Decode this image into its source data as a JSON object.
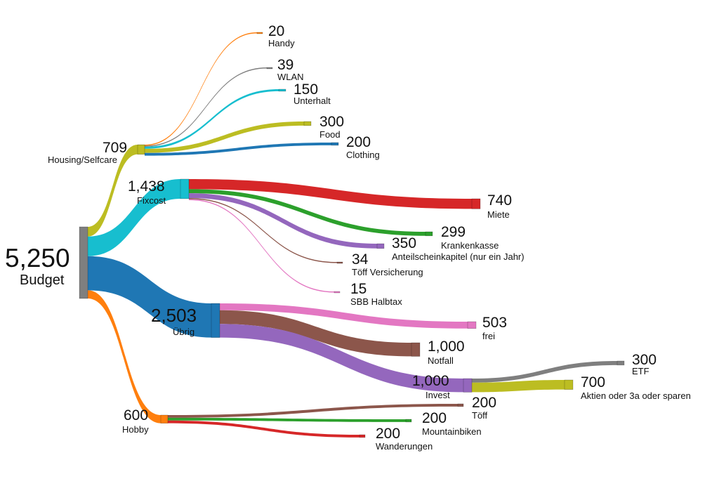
{
  "chart_data": {
    "type": "sankey",
    "units": "",
    "nodes": [
      {
        "id": "budget",
        "label": "Budget",
        "value": 5250,
        "value_text": "5,250",
        "color": "#7f7f7f"
      },
      {
        "id": "housing",
        "label": "Housing/Selfcare",
        "value": 709,
        "value_text": "709",
        "color": "#bcbd22"
      },
      {
        "id": "fixcost",
        "label": "Fixcost",
        "value": 1438,
        "value_text": "1,438",
        "color": "#17becf"
      },
      {
        "id": "uebrig",
        "label": "Übrig",
        "value": 2503,
        "value_text": "2,503",
        "color": "#1f77b4"
      },
      {
        "id": "hobby",
        "label": "Hobby",
        "value": 600,
        "value_text": "600",
        "color": "#ff7f0e"
      },
      {
        "id": "handy",
        "label": "Handy",
        "value": 20,
        "value_text": "20",
        "color": "#ff7f0e"
      },
      {
        "id": "wlan",
        "label": "WLAN",
        "value": 39,
        "value_text": "39",
        "color": "#7f7f7f"
      },
      {
        "id": "unterhalt",
        "label": "Unterhalt",
        "value": 150,
        "value_text": "150",
        "color": "#17becf"
      },
      {
        "id": "food",
        "label": "Food",
        "value": 300,
        "value_text": "300",
        "color": "#bcbd22"
      },
      {
        "id": "clothing",
        "label": "Clothing",
        "value": 200,
        "value_text": "200",
        "color": "#1f77b4"
      },
      {
        "id": "miete",
        "label": "Miete",
        "value": 740,
        "value_text": "740",
        "color": "#d62728"
      },
      {
        "id": "krankenkasse",
        "label": "Krankenkasse",
        "value": 299,
        "value_text": "299",
        "color": "#2ca02c"
      },
      {
        "id": "anteil",
        "label": "Anteilscheinkapitel (nur ein Jahr)",
        "value": 350,
        "value_text": "350",
        "color": "#9467bd"
      },
      {
        "id": "toeffvers",
        "label": "Töff Versicherung",
        "value": 34,
        "value_text": "34",
        "color": "#8c564b"
      },
      {
        "id": "sbb",
        "label": "SBB Halbtax",
        "value": 15,
        "value_text": "15",
        "color": "#e377c2"
      },
      {
        "id": "frei",
        "label": "frei",
        "value": 503,
        "value_text": "503",
        "color": "#e377c2"
      },
      {
        "id": "notfall",
        "label": "Notfall",
        "value": 1000,
        "value_text": "1,000",
        "color": "#8c564b"
      },
      {
        "id": "invest",
        "label": "Invest",
        "value": 1000,
        "value_text": "1,000",
        "color": "#9467bd"
      },
      {
        "id": "etf",
        "label": "ETF",
        "value": 300,
        "value_text": "300",
        "color": "#7f7f7f"
      },
      {
        "id": "aktien",
        "label": "Aktien oder 3a oder sparen",
        "value": 700,
        "value_text": "700",
        "color": "#bcbd22"
      },
      {
        "id": "toeff",
        "label": "Töff",
        "value": 200,
        "value_text": "200",
        "color": "#8c564b"
      },
      {
        "id": "mountain",
        "label": "Mountainbiken",
        "value": 200,
        "value_text": "200",
        "color": "#2ca02c"
      },
      {
        "id": "wander",
        "label": "Wanderungen",
        "value": 200,
        "value_text": "200",
        "color": "#d62728"
      }
    ],
    "links": [
      {
        "source": "budget",
        "target": "housing",
        "value": 709
      },
      {
        "source": "budget",
        "target": "fixcost",
        "value": 1438
      },
      {
        "source": "budget",
        "target": "uebrig",
        "value": 2503
      },
      {
        "source": "budget",
        "target": "hobby",
        "value": 600
      },
      {
        "source": "housing",
        "target": "handy",
        "value": 20
      },
      {
        "source": "housing",
        "target": "wlan",
        "value": 39
      },
      {
        "source": "housing",
        "target": "unterhalt",
        "value": 150
      },
      {
        "source": "housing",
        "target": "food",
        "value": 300
      },
      {
        "source": "housing",
        "target": "clothing",
        "value": 200
      },
      {
        "source": "fixcost",
        "target": "miete",
        "value": 740
      },
      {
        "source": "fixcost",
        "target": "krankenkasse",
        "value": 299
      },
      {
        "source": "fixcost",
        "target": "anteil",
        "value": 350
      },
      {
        "source": "fixcost",
        "target": "toeffvers",
        "value": 34
      },
      {
        "source": "fixcost",
        "target": "sbb",
        "value": 15
      },
      {
        "source": "uebrig",
        "target": "frei",
        "value": 503
      },
      {
        "source": "uebrig",
        "target": "notfall",
        "value": 1000
      },
      {
        "source": "uebrig",
        "target": "invest",
        "value": 1000
      },
      {
        "source": "invest",
        "target": "etf",
        "value": 300
      },
      {
        "source": "invest",
        "target": "aktien",
        "value": 700
      },
      {
        "source": "hobby",
        "target": "toeff",
        "value": 200
      },
      {
        "source": "hobby",
        "target": "mountain",
        "value": 200
      },
      {
        "source": "hobby",
        "target": "wander",
        "value": 200
      }
    ]
  }
}
